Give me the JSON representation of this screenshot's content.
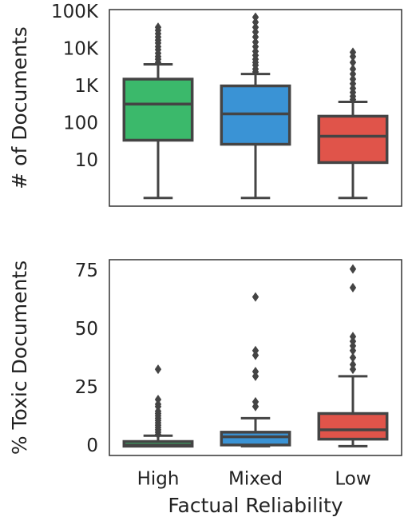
{
  "chart_data": [
    {
      "type": "box",
      "ylabel": "# of Documents",
      "log_scale": true,
      "ylim": [
        0.6,
        120000
      ],
      "yticks": [
        10,
        100,
        {
          "value": 1000,
          "label": "1K"
        },
        {
          "value": 10000,
          "label": "10K"
        },
        {
          "value": 100000,
          "label": "100K"
        }
      ],
      "colors": [
        "#3bb96b",
        "#3a93d5",
        "#e0544a"
      ],
      "boxes": [
        {
          "min": 1,
          "q1": 36,
          "median": 340,
          "q3": 1600,
          "max": 4000,
          "outliers": [
            4500,
            5500,
            6500,
            8000,
            10000,
            12000,
            15000,
            18000,
            22000,
            27000,
            33000,
            40000
          ]
        },
        {
          "min": 1,
          "q1": 28,
          "median": 185,
          "q3": 1050,
          "max": 2200,
          "outliers": [
            2500,
            3000,
            3800,
            4500,
            5500,
            7000,
            9000,
            12000,
            16000,
            22000,
            30000,
            40000,
            55000,
            75000
          ]
        },
        {
          "min": 1,
          "q1": 9,
          "median": 46,
          "q3": 160,
          "max": 390,
          "outliers": [
            450,
            550,
            700,
            900,
            1200,
            1600,
            2200,
            3000,
            4500,
            6500,
            8500
          ]
        }
      ]
    },
    {
      "type": "box",
      "ylabel": "% Toxic Documents",
      "xlabel": "Factual Reliability",
      "log_scale": false,
      "categories": [
        "High",
        "Mixed",
        "Low"
      ],
      "ylim": [
        -4,
        80
      ],
      "yticks": [
        0,
        25,
        50,
        75
      ],
      "colors": [
        "#3bb96b",
        "#3a93d5",
        "#e0544a"
      ],
      "boxes": [
        {
          "min": 0,
          "q1": 0,
          "median": 0.5,
          "q3": 2,
          "max": 4.5,
          "outliers": [
            5,
            6,
            7,
            8,
            9,
            10,
            11,
            12,
            13,
            14,
            15,
            17,
            18,
            20,
            33
          ]
        },
        {
          "min": 0,
          "q1": 0.5,
          "median": 4,
          "q3": 6,
          "max": 12,
          "outliers": [
            17,
            19,
            30,
            32,
            39,
            41,
            64
          ]
        },
        {
          "min": 0,
          "q1": 3,
          "median": 7,
          "q3": 14,
          "max": 30,
          "outliers": [
            33,
            35,
            38,
            41,
            43,
            45,
            47,
            68,
            76
          ]
        }
      ]
    }
  ]
}
